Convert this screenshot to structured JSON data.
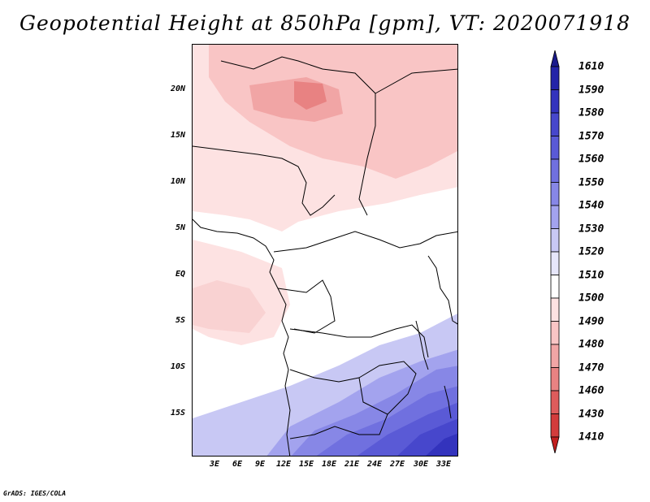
{
  "title": "Geopotential Height at 850hPa [gpm], VT: 2020071918",
  "credit": "GrADS: IGES/COLA",
  "y_ticks": [
    "20N",
    "15N",
    "10N",
    "5N",
    "EQ",
    "5S",
    "10S",
    "15S"
  ],
  "x_ticks": [
    "3E",
    "6E",
    "9E",
    "12E",
    "15E",
    "18E",
    "21E",
    "24E",
    "27E",
    "30E",
    "33E"
  ],
  "colorbar": {
    "labels": [
      "1610",
      "1590",
      "1580",
      "1570",
      "1560",
      "1550",
      "1540",
      "1530",
      "1520",
      "1510",
      "1500",
      "1490",
      "1480",
      "1470",
      "1460",
      "1430",
      "1410"
    ],
    "colors": [
      "#1b1b8c",
      "#2424a8",
      "#3333bd",
      "#4747cc",
      "#5a5ad6",
      "#7070df",
      "#8787e6",
      "#a3a3ee",
      "#c8c8f4",
      "#e6e6fa",
      "#ffffff",
      "#fde2e2",
      "#f9c5c5",
      "#f1a5a5",
      "#e88282",
      "#de5c5c",
      "#d33c3c",
      "#c21f1f"
    ]
  }
}
